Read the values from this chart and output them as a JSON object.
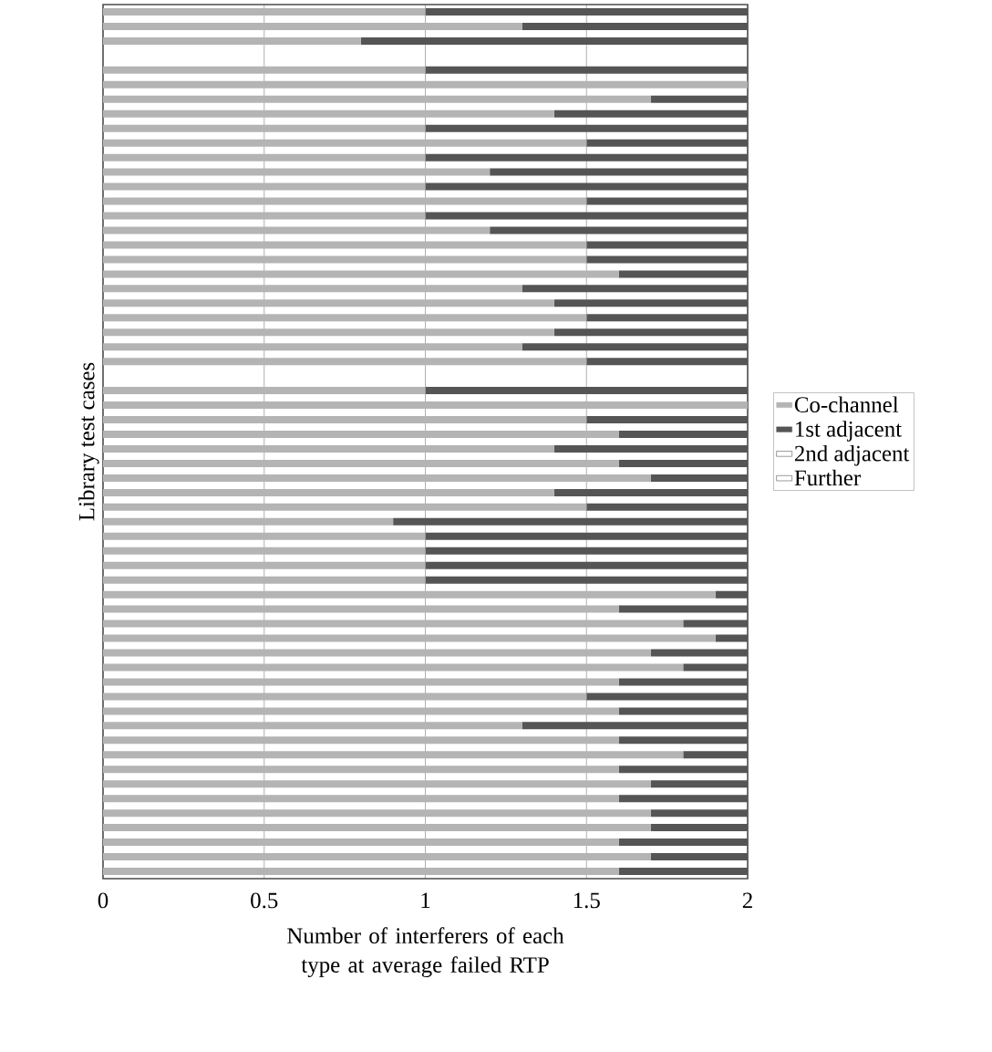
{
  "chart_data": {
    "type": "bar",
    "orientation": "horizontal",
    "stacked": true,
    "xlabel": "Number of interferers of each type at average failed RTP",
    "ylabel": "Library test cases",
    "categories": [
      null,
      null,
      null,
      null,
      null,
      null,
      null,
      null,
      null,
      null,
      null,
      null,
      null,
      null,
      null,
      null,
      null,
      null,
      null,
      null,
      null,
      null,
      null,
      null,
      null,
      null,
      null,
      null,
      null,
      null,
      null,
      null,
      null,
      null,
      null,
      null,
      null,
      null,
      null,
      null,
      null,
      null,
      null,
      null,
      null,
      null,
      null,
      null,
      null,
      null,
      null,
      null,
      null,
      null,
      null,
      null,
      null,
      null,
      null,
      null
    ],
    "series": [
      {
        "name": "Co-channel",
        "color": "#b4b4b4",
        "values": [
          1.0,
          1.3,
          0.8,
          null,
          1.0,
          2.0,
          1.7,
          1.4,
          1.0,
          1.5,
          1.0,
          1.2,
          1.0,
          1.5,
          1.0,
          1.2,
          1.5,
          1.5,
          1.6,
          1.3,
          1.4,
          1.5,
          1.4,
          1.3,
          1.5,
          null,
          1.0,
          2.0,
          1.5,
          1.6,
          1.4,
          1.6,
          1.7,
          1.4,
          1.5,
          0.9,
          1.0,
          1.0,
          1.0,
          1.0,
          1.9,
          1.6,
          1.8,
          1.9,
          1.7,
          1.8,
          1.6,
          1.5,
          1.6,
          1.3,
          1.6,
          1.8,
          1.6,
          1.7,
          1.6,
          1.7,
          1.7,
          1.6,
          1.7,
          1.6
        ]
      },
      {
        "name": "1st adjacent",
        "color": "#555555",
        "values": [
          1.0,
          0.7,
          1.2,
          null,
          1.0,
          0,
          0.3,
          0.6,
          1.0,
          0.5,
          1.0,
          0.8,
          1.0,
          0.5,
          1.0,
          0.8,
          0.5,
          0.5,
          0.4,
          0.7,
          0.6,
          0.5,
          0.6,
          0.7,
          0.5,
          null,
          1.0,
          0,
          0.5,
          0.4,
          0.6,
          0.4,
          0.3,
          0.6,
          0.5,
          1.1,
          1.0,
          1.0,
          1.0,
          1.0,
          0.1,
          0.4,
          0.2,
          0.1,
          0.3,
          0.2,
          0.4,
          0.5,
          0.4,
          0.7,
          0.4,
          0.2,
          0.4,
          0.3,
          0.4,
          0.3,
          0.3,
          0.4,
          0.3,
          0.4
        ]
      },
      {
        "name": "2nd adjacent",
        "color": "#ffffff",
        "values": [
          0,
          0,
          0,
          null,
          0,
          0,
          0,
          0,
          0,
          0,
          0,
          0,
          0,
          0,
          0,
          0,
          0,
          0,
          0,
          0,
          0,
          0,
          0,
          0,
          0,
          null,
          0,
          0,
          0,
          0,
          0,
          0,
          0,
          0,
          0,
          0,
          0,
          0,
          0,
          0,
          0,
          0,
          0,
          0,
          0,
          0,
          0,
          0,
          0,
          0,
          0,
          0,
          0,
          0,
          0,
          0,
          0,
          0,
          0,
          0
        ]
      },
      {
        "name": "Further",
        "color": "#ffffff",
        "values": [
          0,
          0,
          0,
          null,
          0,
          0,
          0,
          0,
          0,
          0,
          0,
          0,
          0,
          0,
          0,
          0,
          0,
          0,
          0,
          0,
          0,
          0,
          0,
          0,
          0,
          null,
          0,
          0,
          0,
          0,
          0,
          0,
          0,
          0,
          0,
          0,
          0,
          0,
          0,
          0,
          0,
          0,
          0,
          0,
          0,
          0,
          0,
          0,
          0,
          0,
          0,
          0,
          0,
          0,
          0,
          0,
          0,
          0,
          0,
          0
        ]
      }
    ],
    "xlim": [
      0,
      2
    ],
    "xticks": [
      0,
      0.5,
      1,
      1.5,
      2
    ],
    "grid": "x",
    "legend": "right"
  }
}
